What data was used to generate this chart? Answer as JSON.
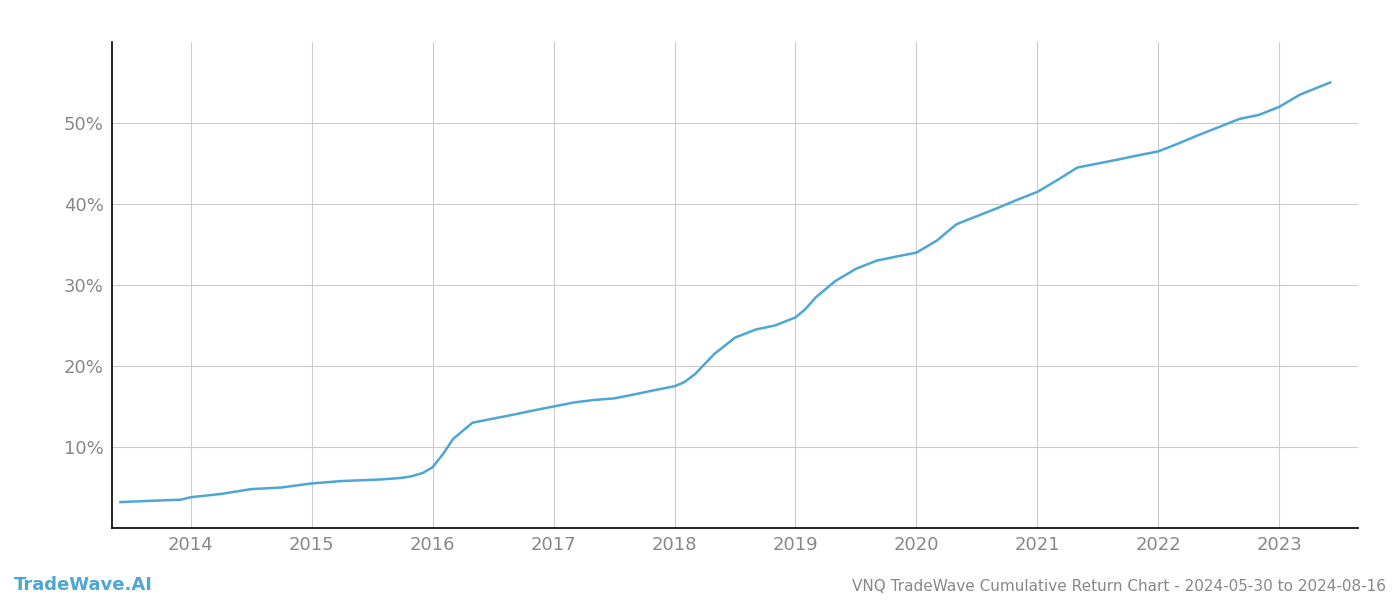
{
  "title": "VNQ TradeWave Cumulative Return Chart - 2024-05-30 to 2024-08-16",
  "watermark": "TradeWave.AI",
  "line_color": "#4da6d4",
  "background_color": "#ffffff",
  "grid_color": "#cccccc",
  "x_values": [
    2013.42,
    2013.58,
    2013.75,
    2013.92,
    2014.0,
    2014.25,
    2014.5,
    2014.75,
    2015.0,
    2015.25,
    2015.42,
    2015.58,
    2015.67,
    2015.75,
    2015.83,
    2015.92,
    2016.0,
    2016.08,
    2016.17,
    2016.33,
    2016.5,
    2016.67,
    2016.83,
    2017.0,
    2017.17,
    2017.33,
    2017.5,
    2017.67,
    2017.83,
    2018.0,
    2018.08,
    2018.17,
    2018.33,
    2018.5,
    2018.67,
    2018.83,
    2019.0,
    2019.08,
    2019.17,
    2019.33,
    2019.5,
    2019.67,
    2019.83,
    2020.0,
    2020.17,
    2020.33,
    2020.5,
    2020.67,
    2020.83,
    2021.0,
    2021.17,
    2021.33,
    2021.5,
    2021.67,
    2021.83,
    2022.0,
    2022.17,
    2022.33,
    2022.5,
    2022.67,
    2022.83,
    2023.0,
    2023.17,
    2023.42
  ],
  "y_values": [
    3.2,
    3.3,
    3.4,
    3.5,
    3.8,
    4.2,
    4.8,
    5.0,
    5.5,
    5.8,
    5.9,
    6.0,
    6.1,
    6.2,
    6.4,
    6.8,
    7.5,
    9.0,
    11.0,
    13.0,
    13.5,
    14.0,
    14.5,
    15.0,
    15.5,
    15.8,
    16.0,
    16.5,
    17.0,
    17.5,
    18.0,
    19.0,
    21.5,
    23.5,
    24.5,
    25.0,
    26.0,
    27.0,
    28.5,
    30.5,
    32.0,
    33.0,
    33.5,
    34.0,
    35.5,
    37.5,
    38.5,
    39.5,
    40.5,
    41.5,
    43.0,
    44.5,
    45.0,
    45.5,
    46.0,
    46.5,
    47.5,
    48.5,
    49.5,
    50.5,
    51.0,
    52.0,
    53.5,
    55.0
  ],
  "xlim": [
    2013.35,
    2023.65
  ],
  "ylim": [
    0,
    60
  ],
  "xticks": [
    2014,
    2015,
    2016,
    2017,
    2018,
    2019,
    2020,
    2021,
    2022,
    2023
  ],
  "yticks": [
    10,
    20,
    30,
    40,
    50
  ],
  "tick_label_color": "#888888",
  "tick_fontsize": 13,
  "line_width": 1.8,
  "title_fontsize": 11,
  "watermark_fontsize": 13,
  "left_spine_color": "#000000",
  "bottom_spine_color": "#000000"
}
